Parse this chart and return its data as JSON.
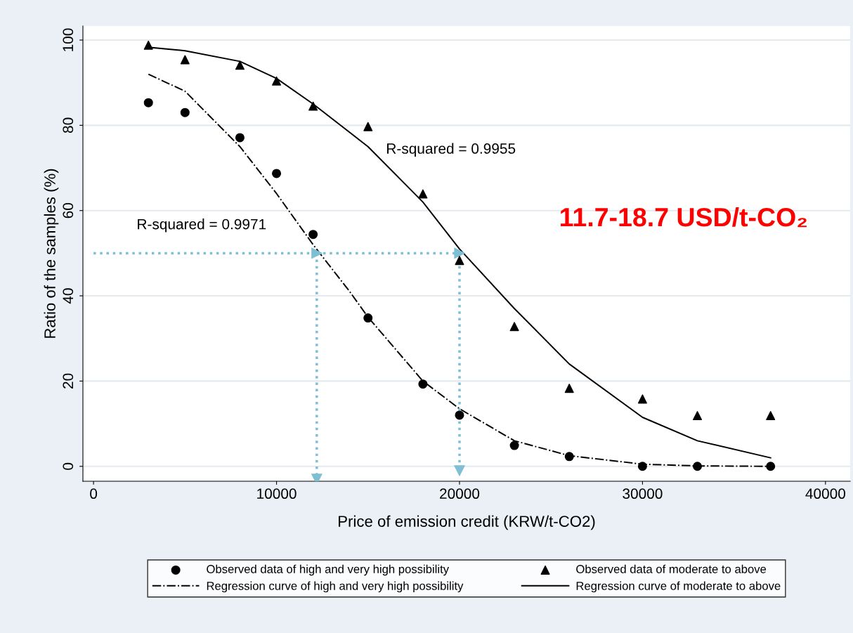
{
  "chart_data": {
    "type": "scatter",
    "xlabel": "Price of emission credit (KRW/t-CO2)",
    "ylabel": "Ratio of the samples (%)",
    "xlim": [
      -580,
      41350
    ],
    "ylim": [
      -3.5,
      103.3
    ],
    "xticks": [
      0,
      10000,
      20000,
      30000,
      40000
    ],
    "yticks": [
      0,
      20,
      40,
      60,
      80,
      100
    ],
    "grid": "y",
    "legend": "bottom",
    "series": [
      {
        "name": "Observed data of high and very high possibility",
        "marker": "circle",
        "color": "#000000",
        "x": [
          3000,
          5000,
          8000,
          10000,
          12000,
          15000,
          18000,
          20000,
          23000,
          26000,
          30000,
          33000,
          37000
        ],
        "values": [
          85.3,
          83.0,
          77.1,
          68.7,
          54.4,
          34.8,
          19.3,
          12.0,
          4.9,
          2.3,
          0,
          0,
          0
        ]
      },
      {
        "name": "Regression curve of high and very high possibility",
        "type": "line",
        "marker": "none",
        "line_style": "dashdot",
        "color": "#000000",
        "x": [
          3000,
          5000,
          8000,
          10000,
          12000,
          14000,
          15000,
          18000,
          20000,
          23000,
          26000,
          30000,
          33000,
          37000
        ],
        "values": [
          92,
          88,
          75,
          64,
          52,
          41,
          35,
          20,
          13.5,
          6,
          2.5,
          0.5,
          0.1,
          0
        ]
      },
      {
        "name": "Observed data of moderate to above",
        "marker": "triangle",
        "color": "#000000",
        "x": [
          3000,
          5000,
          8000,
          10000,
          12000,
          15000,
          18000,
          20000,
          23000,
          26000,
          30000,
          33000,
          37000
        ],
        "values": [
          98.8,
          95.4,
          94.1,
          90.4,
          84.5,
          79.7,
          63.9,
          48.3,
          32.8,
          18.3,
          15.8,
          11.9,
          11.9
        ]
      },
      {
        "name": "Regression curve of moderate to above",
        "type": "line",
        "marker": "none",
        "line_style": "solid",
        "color": "#000000",
        "x": [
          3000,
          5000,
          8000,
          10000,
          12000,
          15000,
          18000,
          20000,
          23000,
          26000,
          30000,
          33000,
          37000
        ],
        "values": [
          98.3,
          97.5,
          95,
          91,
          85,
          75,
          62,
          51,
          37,
          24,
          11.5,
          6,
          2
        ]
      },
      {
        "type": "line",
        "marker": "triangle",
        "line_style": "dotted",
        "color": "#7fbfd4",
        "x": [
          0,
          12200
        ],
        "values": [
          50,
          50
        ]
      },
      {
        "type": "line",
        "marker": "triangle",
        "line_style": "dotted",
        "color": "#7fbfd4",
        "x": [
          12200,
          20000
        ],
        "values": [
          50,
          50
        ]
      },
      {
        "type": "line",
        "marker": "triangle",
        "line_style": "dotted",
        "color": "#7fbfd4",
        "x": [
          12200,
          12200
        ],
        "values": [
          50,
          -3
        ]
      },
      {
        "type": "line",
        "marker": "triangle",
        "line_style": "dotted",
        "color": "#7fbfd4",
        "x": [
          20000,
          20000
        ],
        "values": [
          50,
          -1
        ]
      }
    ],
    "annotations": [
      "R-squared = 0.9955",
      "R-squared = 0.9971",
      "11.7-18.7 USD/t-CO₂"
    ]
  }
}
